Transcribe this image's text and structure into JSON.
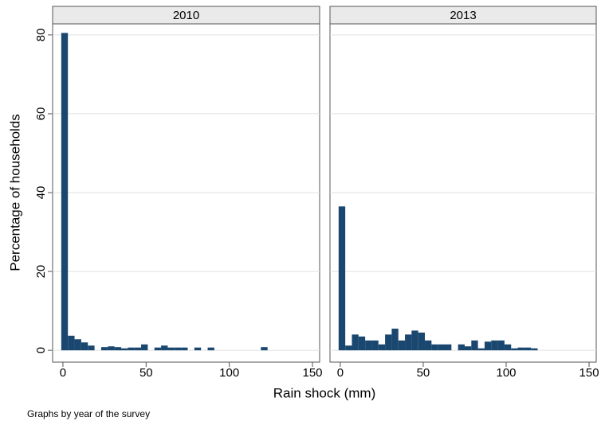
{
  "chart_data": [
    {
      "type": "histogram",
      "title": "2010",
      "color": "#1a476f",
      "grid": true,
      "bins": [
        -1,
        3,
        7,
        11,
        15,
        19,
        23,
        27,
        31,
        35,
        39,
        43,
        47,
        51,
        55,
        59,
        63,
        67,
        71,
        75,
        79,
        83,
        87,
        91,
        95,
        99,
        103,
        107,
        111,
        115,
        119,
        123
      ],
      "values": [
        80.5,
        3.7,
        2.8,
        2,
        1.2,
        0,
        0.8,
        1,
        0.8,
        0.5,
        0.7,
        0.7,
        1.5,
        0,
        0.7,
        1.2,
        0.7,
        0.7,
        0.7,
        0,
        0.7,
        0,
        0.7,
        0,
        0,
        0,
        0,
        0,
        0,
        0,
        0.8
      ],
      "xlim": [
        -6.2,
        154.3
      ],
      "ylim": [
        -3,
        82.8
      ],
      "xticks": [
        0,
        50,
        100,
        150
      ],
      "yticks": [
        0,
        20,
        40,
        60,
        80
      ]
    },
    {
      "type": "histogram",
      "title": "2013",
      "color": "#1a476f",
      "grid": true,
      "bins": [
        -1,
        3,
        7,
        11,
        15,
        19,
        23,
        27,
        31,
        35,
        39,
        43,
        47,
        51,
        55,
        59,
        63,
        67,
        71,
        75,
        79,
        83,
        87,
        91,
        95,
        99,
        103,
        107,
        111,
        115,
        119,
        123
      ],
      "values": [
        36.5,
        1.2,
        4,
        3.5,
        2.5,
        2.5,
        1.5,
        4,
        5.5,
        2.5,
        4,
        5,
        4.5,
        2.5,
        1.5,
        1.5,
        1.5,
        0,
        1.5,
        1,
        2.5,
        0.5,
        2.2,
        2.5,
        2.5,
        1.5,
        0.5,
        0.7,
        0.7,
        0.5,
        0
      ],
      "xlim": [
        -6.2,
        154.3
      ],
      "ylim": [
        -3,
        82.8
      ],
      "xticks": [
        0,
        50,
        100,
        150
      ],
      "yticks": [
        0,
        20,
        40,
        60,
        80
      ]
    }
  ],
  "ylabel": "Percentage of households",
  "xlabel": "Rain shock (mm)",
  "note": "Graphs by year of the survey"
}
